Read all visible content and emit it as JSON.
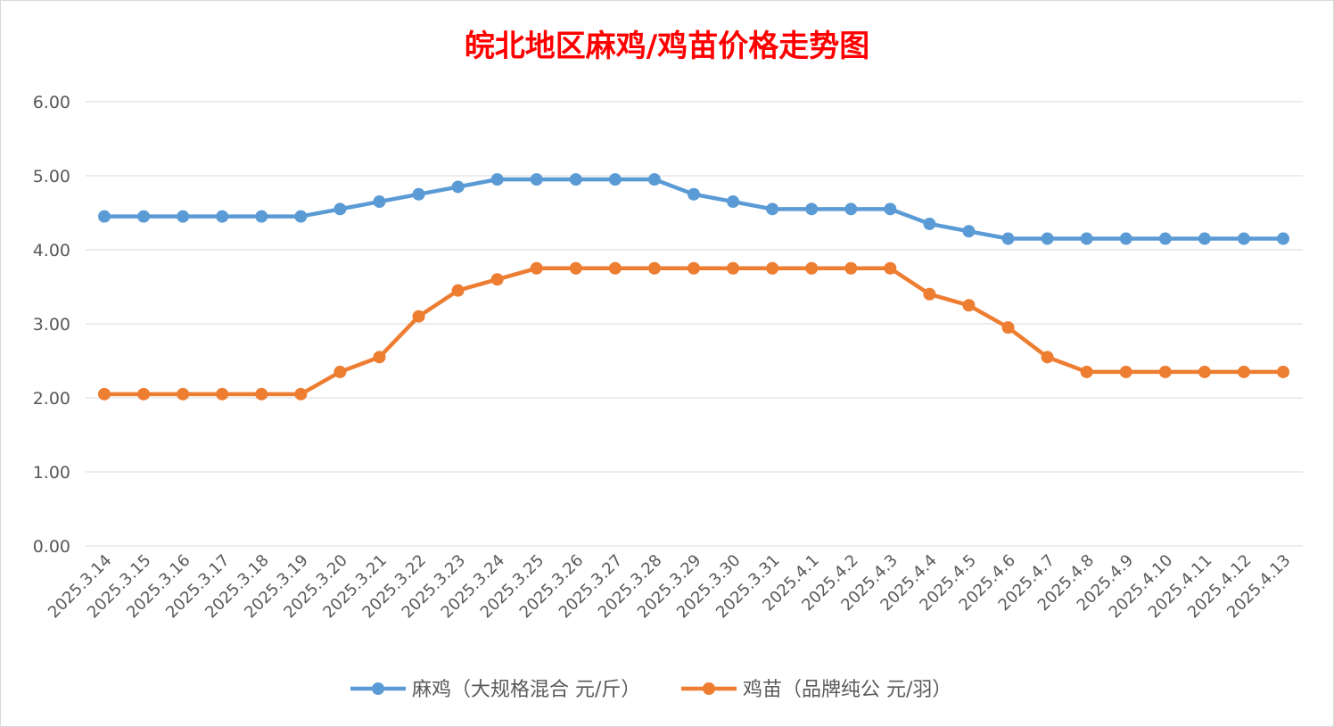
{
  "chart_data": {
    "type": "line",
    "title": "皖北地区麻鸡/鸡苗价格走势图",
    "title_color": "#ff0000",
    "xlabel": "",
    "ylabel": "",
    "ylim": [
      0,
      6
    ],
    "yticks": [
      "0.00",
      "1.00",
      "2.00",
      "3.00",
      "4.00",
      "5.00",
      "6.00"
    ],
    "grid": true,
    "legend_position": "bottom",
    "categories": [
      "2025.3.14",
      "2025.3.15",
      "2025.3.16",
      "2025.3.17",
      "2025.3.18",
      "2025.3.19",
      "2025.3.20",
      "2025.3.21",
      "2025.3.22",
      "2025.3.23",
      "2025.3.24",
      "2025.3.25",
      "2025.3.26",
      "2025.3.27",
      "2025.3.28",
      "2025.3.29",
      "2025.3.30",
      "2025.3.31",
      "2025.4.1",
      "2025.4.2",
      "2025.4.3",
      "2025.4.4",
      "2025.4.5",
      "2025.4.6",
      "2025.4.7",
      "2025.4.8",
      "2025.4.9",
      "2025.4.10",
      "2025.4.11",
      "2025.4.12",
      "2025.4.13"
    ],
    "series": [
      {
        "name": "麻鸡（大规格混合 元/斤）",
        "color": "#5b9bd5",
        "values": [
          4.45,
          4.45,
          4.45,
          4.45,
          4.45,
          4.45,
          4.55,
          4.65,
          4.75,
          4.85,
          4.95,
          4.95,
          4.95,
          4.95,
          4.95,
          4.75,
          4.65,
          4.55,
          4.55,
          4.55,
          4.55,
          4.35,
          4.25,
          4.15,
          4.15,
          4.15,
          4.15,
          4.15,
          4.15,
          4.15,
          4.15
        ]
      },
      {
        "name": "鸡苗（品牌纯公 元/羽）",
        "color": "#ed7d31",
        "values": [
          2.05,
          2.05,
          2.05,
          2.05,
          2.05,
          2.05,
          2.35,
          2.55,
          3.1,
          3.45,
          3.6,
          3.75,
          3.75,
          3.75,
          3.75,
          3.75,
          3.75,
          3.75,
          3.75,
          3.75,
          3.75,
          3.4,
          3.25,
          2.95,
          2.55,
          2.35,
          2.35,
          2.35,
          2.35,
          2.35,
          2.35
        ]
      }
    ]
  }
}
